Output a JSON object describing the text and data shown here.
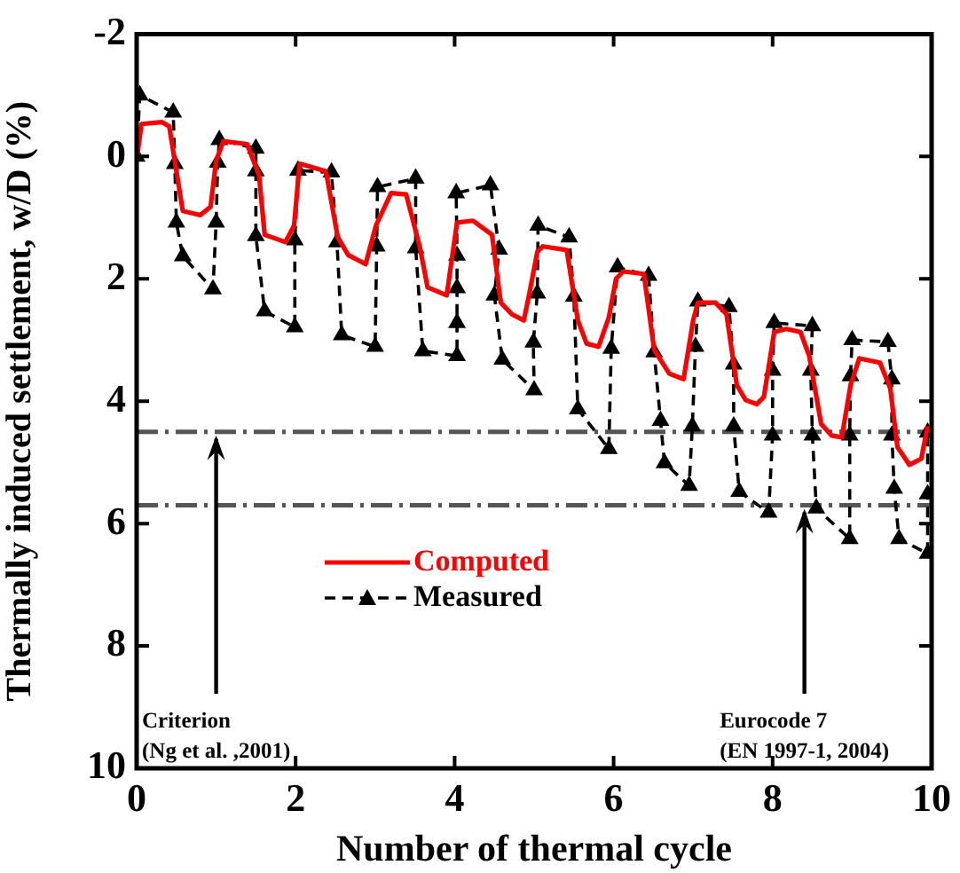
{
  "chart_data": {
    "type": "line",
    "xlabel": "Number of thermal cycle",
    "ylabel": "Thermally induced settlement, w/D (%)",
    "xlim": [
      0,
      10
    ],
    "xticks": [
      0,
      2,
      4,
      6,
      8,
      10
    ],
    "ylim": [
      10,
      -2
    ],
    "yticks": [
      -2,
      0,
      2,
      4,
      6,
      8,
      10
    ],
    "grid": false,
    "legend": "bottom left",
    "series": [
      {
        "name": "Computed",
        "color": "#ff0000",
        "marker": "none",
        "line_style": "solid",
        "x": [
          0,
          0.06,
          0.32,
          0.41,
          0.58,
          0.8,
          0.93,
          1.0,
          1.09,
          1.39,
          1.54,
          1.61,
          1.87,
          1.98,
          2.05,
          2.38,
          2.53,
          2.66,
          2.88,
          3.01,
          3.2,
          3.39,
          3.56,
          3.66,
          3.9,
          4.03,
          4.23,
          4.47,
          4.58,
          4.72,
          4.87,
          4.94,
          5.04,
          5.11,
          5.41,
          5.55,
          5.66,
          5.81,
          5.94,
          6.03,
          6.12,
          6.38,
          6.51,
          6.7,
          6.88,
          7.0,
          7.06,
          7.28,
          7.42,
          7.55,
          7.66,
          7.8,
          7.89,
          8.02,
          8.17,
          8.35,
          8.46,
          8.61,
          8.74,
          8.87,
          8.98,
          9.09,
          9.35,
          9.48,
          9.57,
          9.72,
          9.87,
          9.95
        ],
        "values": [
          0.07,
          -0.53,
          -0.56,
          -0.49,
          0.89,
          0.96,
          0.82,
          0.07,
          -0.25,
          -0.2,
          0.31,
          1.28,
          1.4,
          1.13,
          0.12,
          0.24,
          1.32,
          1.61,
          1.76,
          1.13,
          0.6,
          0.62,
          1.47,
          2.14,
          2.27,
          1.08,
          1.05,
          1.28,
          2.39,
          2.58,
          2.68,
          2.24,
          1.56,
          1.47,
          1.53,
          2.68,
          3.06,
          3.11,
          2.63,
          2.0,
          1.88,
          1.92,
          3.16,
          3.55,
          3.64,
          2.68,
          2.39,
          2.39,
          2.58,
          3.74,
          3.98,
          4.05,
          3.93,
          2.87,
          2.82,
          2.87,
          3.26,
          4.37,
          4.56,
          4.59,
          3.74,
          3.3,
          3.37,
          3.79,
          4.75,
          5.04,
          4.94,
          4.41
        ]
      },
      {
        "name": "Measured",
        "color": "#000000",
        "marker": "triangle",
        "line_style": "dashed",
        "x": [
          0,
          0.04,
          0.46,
          0.48,
          0.5,
          0.58,
          0.96,
          1.0,
          1.02,
          1.04,
          1.5,
          1.5,
          1.5,
          1.61,
          1.99,
          1.99,
          2.03,
          2.45,
          2.52,
          2.58,
          3.0,
          3.02,
          3.03,
          3.51,
          3.51,
          3.6,
          4.03,
          4.03,
          4.03,
          4.03,
          4.02,
          4.45,
          4.56,
          4.5,
          4.6,
          5.0,
          4.99,
          5.04,
          5.05,
          5.44,
          5.5,
          5.55,
          5.94,
          5.97,
          6.05,
          6.44,
          6.51,
          6.59,
          6.64,
          6.95,
          6.99,
          7.03,
          7.06,
          7.45,
          7.51,
          7.51,
          7.58,
          7.95,
          8.0,
          8.0,
          8.02,
          8.5,
          8.48,
          8.5,
          8.55,
          8.97,
          8.97,
          8.98,
          9.0,
          9.45,
          9.5,
          9.5,
          9.53,
          9.59,
          9.95,
          9.95,
          9.95
        ],
        "values": [
          0.0,
          -1.0,
          -0.72,
          0.12,
          1.08,
          1.63,
          2.17,
          1.08,
          0.1,
          -0.27,
          -0.13,
          0.24,
          1.3,
          2.53,
          2.79,
          1.37,
          0.23,
          0.26,
          1.4,
          2.92,
          3.11,
          1.47,
          0.5,
          0.36,
          1.5,
          3.18,
          3.26,
          2.72,
          2.15,
          1.62,
          0.6,
          0.47,
          1.52,
          2.27,
          3.32,
          3.82,
          3.04,
          2.24,
          1.13,
          1.32,
          2.29,
          4.13,
          4.78,
          3.14,
          1.81,
          1.95,
          3.2,
          4.32,
          5.01,
          5.38,
          4.41,
          3.11,
          2.37,
          2.46,
          3.4,
          4.41,
          5.48,
          5.82,
          4.56,
          3.5,
          2.72,
          2.77,
          3.5,
          4.56,
          5.75,
          6.25,
          4.56,
          3.59,
          3.0,
          3.03,
          3.64,
          4.56,
          5.43,
          6.25,
          6.49,
          5.52,
          4.51
        ]
      }
    ],
    "ref_lines": [
      {
        "axis": "y",
        "value": 4.5,
        "color": "#555555",
        "line_style": "dashdot"
      },
      {
        "axis": "y",
        "value": 5.7,
        "color": "#555555",
        "line_style": "dashdot"
      }
    ],
    "annotations": [
      {
        "text": "Criterion\n(Ng et al. ,2001)",
        "x": 1,
        "y": 4.5
      },
      {
        "text": "Eurocode 7\n(EN 1997-1, 2004)",
        "x": 8.4,
        "y": 5.7
      }
    ]
  }
}
